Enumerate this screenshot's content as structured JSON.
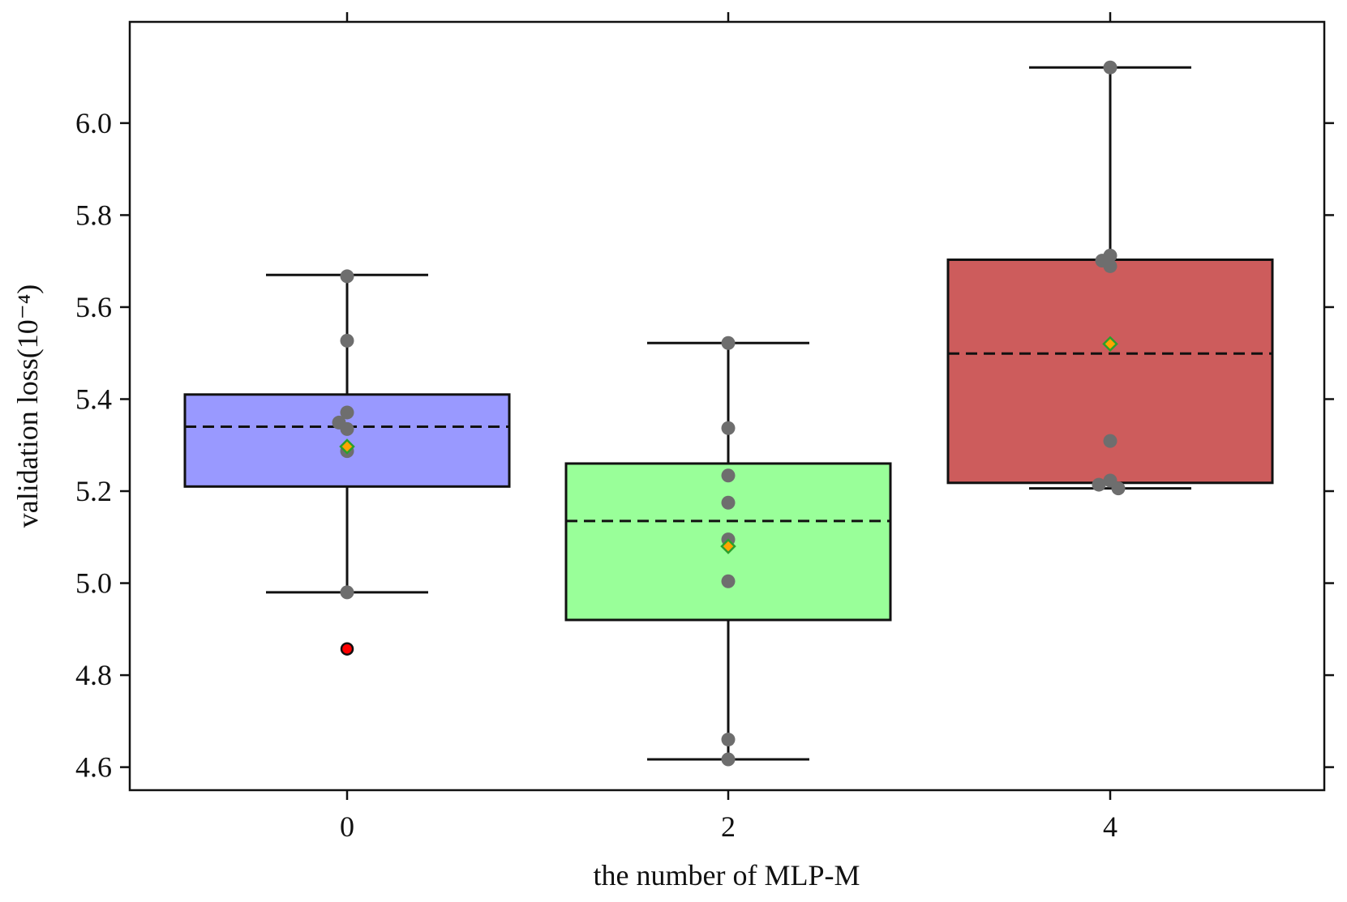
{
  "chart_data": {
    "type": "box",
    "xlabel": "the number of MLP-M",
    "ylabel": "validation loss(10⁻⁴)",
    "categories": [
      "0",
      "2",
      "4"
    ],
    "ylim": [
      4.55,
      6.22
    ],
    "yticks": [
      "4.6",
      "4.8",
      "5.0",
      "5.2",
      "5.4",
      "5.6",
      "5.8",
      "6.0"
    ],
    "ytick_values": [
      4.6,
      4.8,
      5.0,
      5.2,
      5.4,
      5.6,
      5.8,
      6.0
    ],
    "grid": false,
    "median_style": "dashed",
    "mean_marker": "diamond",
    "series": [
      {
        "category": "0",
        "color": "#9999ff",
        "q1": 5.21,
        "median": 5.34,
        "q3": 5.41,
        "whisker_low": 4.98,
        "whisker_high": 5.67,
        "mean": 5.297,
        "points": [
          5.667,
          5.527,
          5.371,
          5.349,
          5.335,
          5.287,
          4.98
        ],
        "outliers": [
          4.857
        ]
      },
      {
        "category": "2",
        "color": "#99ff99",
        "q1": 4.92,
        "median": 5.135,
        "q3": 5.26,
        "whisker_low": 4.617,
        "whisker_high": 5.522,
        "mean": 5.08,
        "points": [
          5.522,
          5.337,
          5.234,
          5.175,
          5.095,
          5.004,
          4.66,
          4.617
        ],
        "outliers": []
      },
      {
        "category": "4",
        "color": "#cd5c5c",
        "q1": 5.218,
        "median": 5.499,
        "q3": 5.703,
        "whisker_low": 5.206,
        "whisker_high": 6.121,
        "mean": 5.52,
        "points": [
          6.121,
          5.712,
          5.701,
          5.689,
          5.309,
          5.223,
          5.214,
          5.206
        ],
        "outliers": []
      }
    ]
  }
}
